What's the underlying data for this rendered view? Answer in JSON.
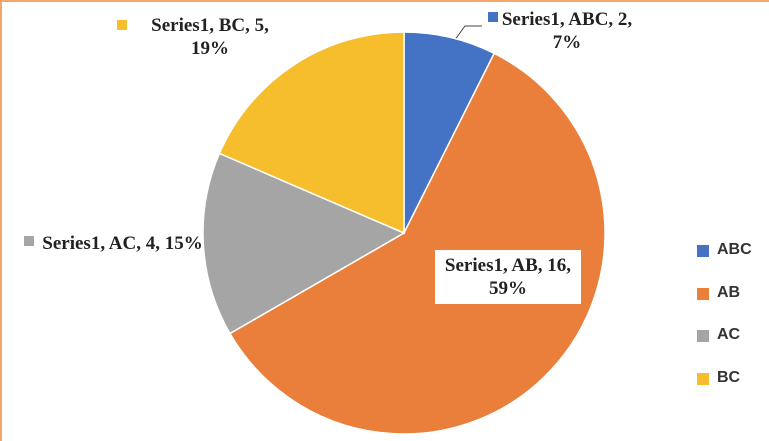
{
  "chart_data": {
    "type": "pie",
    "series_name": "Series1",
    "categories": [
      "ABC",
      "AB",
      "AC",
      "BC"
    ],
    "values": [
      2,
      16,
      4,
      5
    ],
    "value_labels": [
      "Series1, ABC, 2, 7%",
      "Series1, AB, 16, 59%",
      "Series1, AC, 4, 15%",
      "Series1, BC, 5, 19%"
    ],
    "colors": [
      "#4472c4",
      "#e97f3b",
      "#a5a5a5",
      "#f6bd2c"
    ],
    "legend": "right"
  }
}
